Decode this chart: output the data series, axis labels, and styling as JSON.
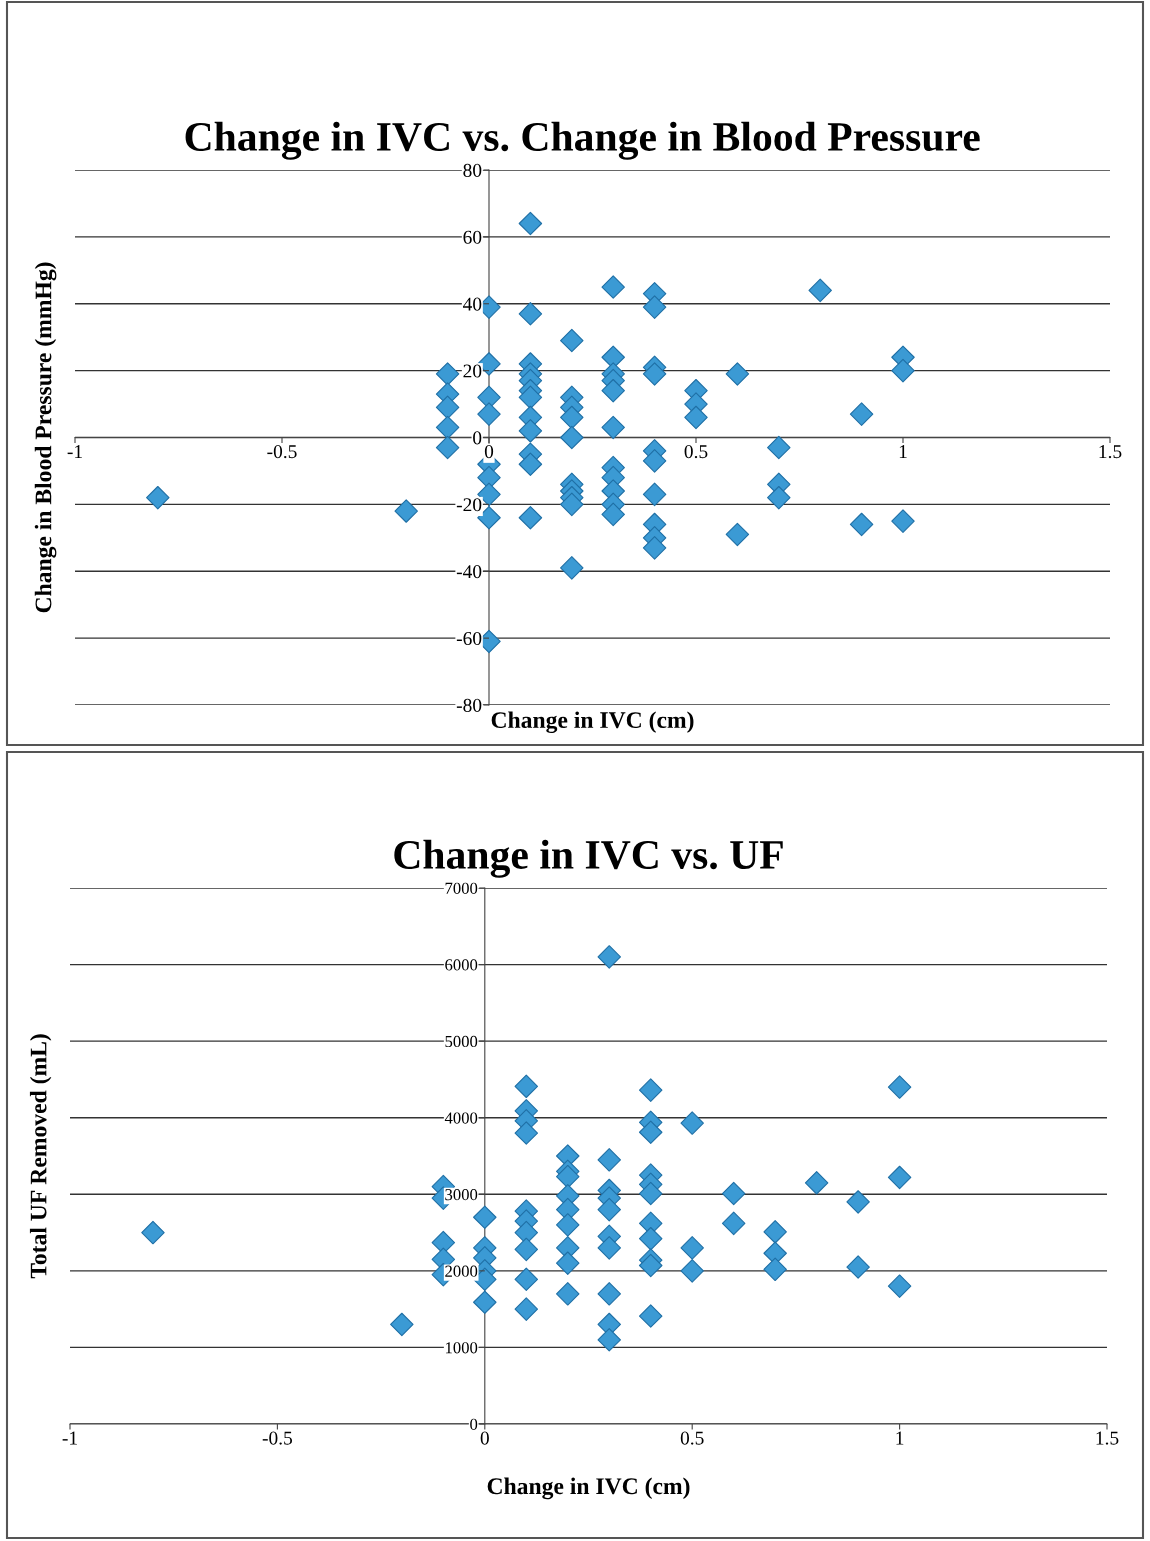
{
  "chart_data": [
    {
      "type": "scatter",
      "title": "Change in IVC vs. Change in Blood Pressure",
      "xlabel": "Change in IVC (cm)",
      "ylabel": "Change in Blood Pressure (mmHg)",
      "color": "#3b9ad4",
      "marker": "diamond",
      "grid": "y",
      "xlim": [
        -1,
        1.5
      ],
      "xticks": [
        -1,
        -0.5,
        0,
        0.5,
        1,
        1.5
      ],
      "ylim": [
        -80,
        80
      ],
      "yticks": [
        -80,
        -60,
        -40,
        -20,
        0,
        20,
        40,
        60,
        80
      ],
      "x": [
        -0.8,
        -0.2,
        -0.1,
        -0.1,
        -0.1,
        -0.1,
        -0.1,
        0,
        0,
        0,
        0,
        0,
        0,
        0,
        0,
        0,
        0.1,
        0.1,
        0.1,
        0.1,
        0.1,
        0.1,
        0.1,
        0.1,
        0.1,
        0.1,
        0.1,
        0.1,
        0.2,
        0.2,
        0.2,
        0.2,
        0.2,
        0.2,
        0.2,
        0.2,
        0.2,
        0.2,
        0.3,
        0.3,
        0.3,
        0.3,
        0.3,
        0.3,
        0.3,
        0.3,
        0.3,
        0.3,
        0.3,
        0.4,
        0.4,
        0.4,
        0.4,
        0.4,
        0.4,
        0.4,
        0.4,
        0.4,
        0.4,
        0.5,
        0.5,
        0.5,
        0.6,
        0.6,
        0.7,
        0.7,
        0.7,
        0.8,
        0.9,
        0.9,
        1,
        1,
        1
      ],
      "values": [
        -18,
        -22,
        19,
        13,
        9,
        3,
        -3,
        39,
        22,
        12,
        7,
        -8,
        -12,
        -17,
        -24,
        -61,
        64,
        37,
        22,
        19,
        17,
        14,
        12,
        6,
        2,
        -5,
        -8,
        -24,
        29,
        12,
        9,
        6,
        0,
        -14,
        -16,
        -18,
        -20,
        -39,
        45,
        24,
        19,
        17,
        14,
        3,
        -9,
        -12,
        -16,
        -20,
        -23,
        43,
        39,
        21,
        19,
        -4,
        -7,
        -17,
        -26,
        -30,
        -33,
        14,
        10,
        6,
        19,
        -29,
        -3,
        -14,
        -18,
        44,
        7,
        -26,
        24,
        20,
        -25
      ]
    },
    {
      "type": "scatter",
      "title": "Change in IVC vs. UF",
      "xlabel": "Change in IVC (cm)",
      "ylabel": "Total UF Removed (mL)",
      "color": "#3b9ad4",
      "marker": "diamond",
      "grid": "y",
      "xlim": [
        -1,
        1.5
      ],
      "xticks": [
        -1,
        -0.5,
        0,
        0.5,
        1,
        1.5
      ],
      "ylim": [
        0,
        7000
      ],
      "yticks": [
        0,
        1000,
        2000,
        3000,
        4000,
        5000,
        6000,
        7000
      ],
      "x": [
        -0.8,
        -0.2,
        -0.1,
        -0.1,
        -0.1,
        -0.1,
        -0.1,
        0,
        0,
        0,
        0,
        0,
        0,
        0.1,
        0.1,
        0.1,
        0.1,
        0.1,
        0.1,
        0.1,
        0.1,
        0.1,
        0.1,
        0.2,
        0.2,
        0.2,
        0.2,
        0.2,
        0.2,
        0.2,
        0.2,
        0.2,
        0.3,
        0.3,
        0.3,
        0.3,
        0.3,
        0.3,
        0.3,
        0.3,
        0.3,
        0.3,
        0.4,
        0.4,
        0.4,
        0.4,
        0.4,
        0.4,
        0.4,
        0.4,
        0.4,
        0.4,
        0.4,
        0.5,
        0.5,
        0.5,
        0.6,
        0.6,
        0.7,
        0.7,
        0.7,
        0.8,
        0.9,
        0.9,
        1,
        1,
        1
      ],
      "values": [
        2500,
        1300,
        3100,
        2950,
        2370,
        2150,
        1950,
        2700,
        2300,
        2170,
        2000,
        1890,
        1590,
        4410,
        4090,
        3960,
        3800,
        2780,
        2650,
        2500,
        2280,
        1890,
        1500,
        3500,
        3300,
        3230,
        2980,
        2800,
        2600,
        2300,
        2100,
        1700,
        6100,
        3450,
        3050,
        2950,
        2800,
        2450,
        2300,
        1700,
        1300,
        1100,
        4360,
        3940,
        3810,
        3250,
        3130,
        3010,
        2620,
        2420,
        2140,
        2070,
        1410,
        3930,
        2300,
        2000,
        3010,
        2620,
        2510,
        2230,
        2020,
        3150,
        2900,
        2050,
        4400,
        3220,
        1800
      ]
    }
  ]
}
